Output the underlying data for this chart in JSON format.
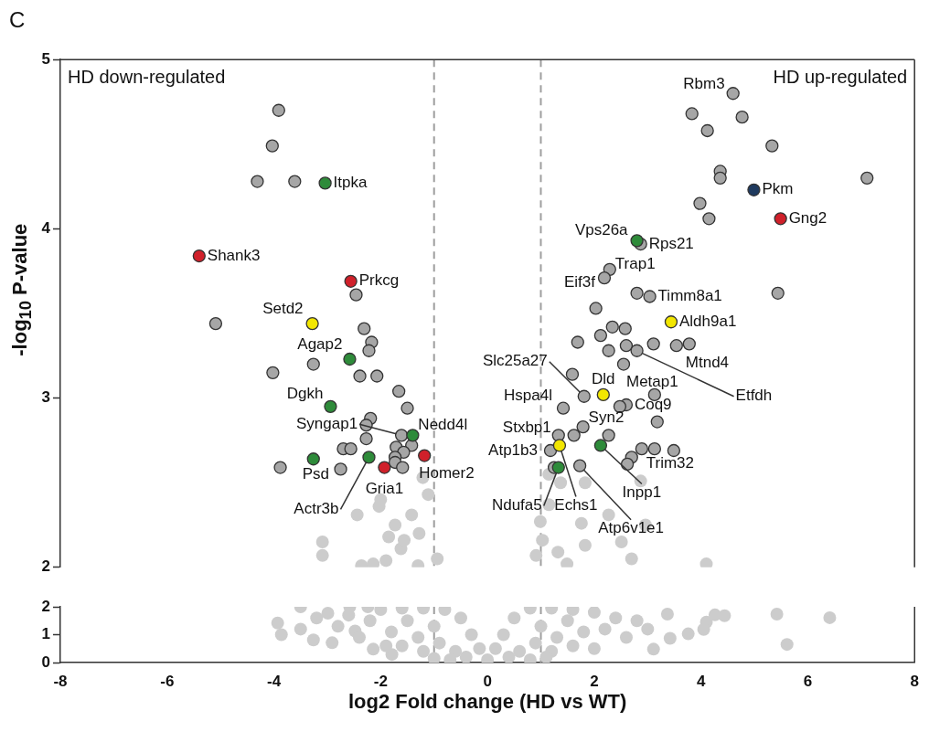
{
  "chart_data": [
    {
      "type": "scatter",
      "title": "C",
      "ylabel": "-log$_{10}$ P-value",
      "xlim": [
        -8,
        8
      ],
      "ylim": [
        2,
        5
      ],
      "yticks": [
        2,
        3,
        4,
        5
      ],
      "tick_labels": "y",
      "grid": false,
      "legend": false,
      "marker": "circle",
      "ref_lines": [
        {
          "axis": "x",
          "value": -1,
          "color": "#9e9e9e",
          "line_style": "dashed"
        },
        {
          "axis": "x",
          "value": 1,
          "color": "#9e9e9e",
          "line_style": "dashed"
        }
      ],
      "annotations": [
        "HD down-regulated",
        "HD up-regulated",
        {
          "text": "Itpka",
          "x": -3.04,
          "y": 4.27
        },
        {
          "text": "Shank3",
          "x": -5.4,
          "y": 3.84
        },
        {
          "text": "Prkcg",
          "x": -2.56,
          "y": 3.69
        },
        {
          "text": "Setd2",
          "x": -3.28,
          "y": 3.44
        },
        {
          "text": "Agap2",
          "x": -2.58,
          "y": 3.23
        },
        {
          "text": "Dgkh",
          "x": -2.94,
          "y": 2.95
        },
        {
          "text": "Syngap1",
          "x": -1.61,
          "y": 2.78
        },
        {
          "text": "Nedd4l",
          "x": -1.4,
          "y": 2.78
        },
        {
          "text": "Psd",
          "x": -3.26,
          "y": 2.64
        },
        {
          "text": "Actr3b",
          "x": -2.22,
          "y": 2.65
        },
        {
          "text": "Gria1",
          "x": -1.93,
          "y": 2.59
        },
        {
          "text": "Homer2",
          "x": -1.18,
          "y": 2.66
        },
        {
          "text": "Rbm3",
          "x": 4.6,
          "y": 4.8
        },
        {
          "text": "Pkm",
          "x": 4.99,
          "y": 4.23
        },
        {
          "text": "Gng2",
          "x": 5.49,
          "y": 4.06
        },
        {
          "text": "Vps26a",
          "x": 2.8,
          "y": 3.93
        },
        {
          "text": "Rps21",
          "x": 2.87,
          "y": 3.91
        },
        {
          "text": "Trap1",
          "x": 2.29,
          "y": 3.76
        },
        {
          "text": "Eif3f",
          "x": 2.19,
          "y": 3.71
        },
        {
          "text": "Timm8a1",
          "x": 3.04,
          "y": 3.6
        },
        {
          "text": "Aldh9a1",
          "x": 3.44,
          "y": 3.45
        },
        {
          "text": "Mtnd4",
          "x": 3.54,
          "y": 3.31
        },
        {
          "text": "Etfdh",
          "x": 2.8,
          "y": 3.28
        },
        {
          "text": "Metap1",
          "x": 2.55,
          "y": 3.2
        },
        {
          "text": "Slc25a27",
          "x": 1.81,
          "y": 3.01
        },
        {
          "text": "Dld",
          "x": 2.17,
          "y": 3.02
        },
        {
          "text": "Hspa4l",
          "x": 1.42,
          "y": 2.94
        },
        {
          "text": "Coq9",
          "x": 2.6,
          "y": 2.96
        },
        {
          "text": "Syn2",
          "x": 1.79,
          "y": 2.83
        },
        {
          "text": "Stxbp1",
          "x": 1.33,
          "y": 2.78
        },
        {
          "text": "Atp1b3",
          "x": 1.18,
          "y": 2.69
        },
        {
          "text": "Ndufa5",
          "x": 1.33,
          "y": 2.59
        },
        {
          "text": "Echs1",
          "x": 1.35,
          "y": 2.72
        },
        {
          "text": "Inpp1",
          "x": 2.12,
          "y": 2.72
        },
        {
          "text": "Atp6v1e1",
          "x": 1.73,
          "y": 2.6
        },
        {
          "text": "Trim32",
          "x": 2.7,
          "y": 2.65
        }
      ],
      "series": [
        {
          "color": "#cccccc",
          "x": [
            -2.44,
            -2.03,
            -2.0,
            -3.09,
            -3.09,
            -2.36,
            -2.14,
            -1.9,
            -1.42,
            -1.73,
            -1.85,
            -1.28,
            -1.62,
            -0.94,
            -1.3,
            -1.11,
            -1.21,
            -1.56,
            1.15,
            1.37,
            1.83,
            2.87,
            1.15,
            0.99,
            1.76,
            2.27,
            2.96,
            1.03,
            0.91,
            1.32,
            1.83,
            2.51,
            2.7,
            4.1,
            1.49
          ],
          "values": [
            2.31,
            2.36,
            2.4,
            2.15,
            2.07,
            2.01,
            2.02,
            2.04,
            2.31,
            2.25,
            2.18,
            2.2,
            2.11,
            2.05,
            2.01,
            2.43,
            2.53,
            2.16,
            2.55,
            2.5,
            2.5,
            2.51,
            2.37,
            2.27,
            2.26,
            2.31,
            2.25,
            2.16,
            2.07,
            2.09,
            2.13,
            2.15,
            2.05,
            2.02,
            2.02
          ]
        },
        {
          "color": "#a6a6a6",
          "x": [
            -3.91,
            -4.03,
            -4.31,
            -3.61,
            -2.46,
            -5.09,
            -2.31,
            -2.17,
            -2.22,
            -3.26,
            -4.02,
            -2.39,
            -2.07,
            -1.66,
            -1.5,
            -2.19,
            -2.27,
            -2.27,
            -1.61,
            -1.42,
            -1.71,
            -1.57,
            -2.7,
            -2.56,
            -3.88,
            -2.75,
            -1.73,
            -1.73,
            -1.59,
            4.6,
            3.83,
            4.77,
            4.12,
            5.33,
            4.36,
            4.36,
            7.11,
            3.98,
            4.15,
            2.87,
            2.29,
            2.19,
            2.8,
            3.04,
            5.44,
            2.03,
            2.34,
            2.58,
            2.12,
            1.69,
            3.11,
            3.54,
            3.78,
            2.6,
            2.8,
            2.27,
            2.55,
            1.59,
            1.81,
            3.13,
            1.42,
            2.6,
            2.48,
            3.18,
            1.79,
            1.62,
            2.27,
            1.33,
            1.18,
            1.25,
            1.73,
            2.89,
            3.13,
            3.49,
            2.7,
            2.62
          ],
          "values": [
            4.7,
            4.49,
            4.28,
            4.28,
            3.61,
            3.44,
            3.41,
            3.33,
            3.28,
            3.2,
            3.15,
            3.13,
            3.13,
            3.04,
            2.94,
            2.88,
            2.84,
            2.76,
            2.78,
            2.72,
            2.71,
            2.68,
            2.7,
            2.7,
            2.59,
            2.58,
            2.65,
            2.62,
            2.59,
            4.8,
            4.68,
            4.66,
            4.58,
            4.49,
            4.34,
            4.3,
            4.3,
            4.15,
            4.06,
            3.91,
            3.76,
            3.71,
            3.62,
            3.6,
            3.62,
            3.53,
            3.42,
            3.41,
            3.37,
            3.33,
            3.32,
            3.31,
            3.32,
            3.31,
            3.28,
            3.28,
            3.2,
            3.14,
            3.01,
            3.02,
            2.94,
            2.96,
            2.95,
            2.86,
            2.83,
            2.78,
            2.78,
            2.78,
            2.69,
            2.59,
            2.6,
            2.7,
            2.7,
            2.69,
            2.65,
            2.61
          ]
        },
        {
          "color": "#2e8b3a",
          "x": [
            -3.04,
            -2.58,
            -2.94,
            -1.4,
            -3.26,
            -2.22,
            2.8,
            2.12,
            1.33
          ],
          "values": [
            4.27,
            3.23,
            2.95,
            2.78,
            2.64,
            2.65,
            3.93,
            2.72,
            2.59
          ]
        },
        {
          "color": "#d0202a",
          "x": [
            -5.4,
            -2.56,
            -1.93,
            -1.18,
            5.49
          ],
          "values": [
            3.84,
            3.69,
            2.59,
            2.66,
            4.06
          ]
        },
        {
          "color": "#f2e600",
          "x": [
            -3.28,
            3.44,
            2.17,
            1.35
          ],
          "values": [
            3.44,
            3.45,
            3.02,
            2.72
          ]
        },
        {
          "color": "#1f3a5f",
          "x": [
            4.99
          ],
          "values": [
            4.23
          ]
        }
      ]
    },
    {
      "type": "scatter",
      "xlabel": "log2 Fold change (HD vs WT)",
      "xlim": [
        -8,
        8
      ],
      "xticks": [
        -8,
        -6,
        -4,
        -2,
        0,
        2,
        4,
        6,
        8
      ],
      "ylim": [
        0,
        2
      ],
      "yticks": [
        0,
        1,
        2
      ],
      "grid": false,
      "legend": false,
      "marker": "circle",
      "ref_lines": [
        {
          "axis": "x",
          "value": -1,
          "color": "#9e9e9e",
          "line_style": "dashed"
        },
        {
          "axis": "x",
          "value": 1,
          "color": "#9e9e9e",
          "line_style": "dashed"
        }
      ],
      "series": [
        {
          "color": "#cccccc",
          "x": [
            -3.93,
            -3.5,
            -3.26,
            -2.91,
            -2.99,
            -2.58,
            -2.24,
            -2.48,
            -2.14,
            -1.79,
            -3.86,
            -2.0,
            -1.6,
            -1.2,
            -0.8,
            -0.5,
            -0.3,
            -0.15,
            0.0,
            -1.5,
            -1.0,
            -2.2,
            -1.8,
            -1.3,
            -0.9,
            -0.6,
            -0.4,
            -1.6,
            -1.2,
            -2.6,
            -2.8,
            -3.2,
            -3.5,
            -2.4,
            -1.9,
            -1.0,
            -0.7,
            0.15,
            0.3,
            0.5,
            0.8,
            1.2,
            1.6,
            2.0,
            2.4,
            2.8,
            3.0,
            1.5,
            1.0,
            1.8,
            1.3,
            0.9,
            0.6,
            0.4,
            1.6,
            1.2,
            2.2,
            2.6,
            2.0,
            0.8,
            1.1,
            3.37,
            4.44,
            5.42,
            6.41,
            5.61,
            4.1,
            4.05,
            3.42,
            3.11,
            3.76,
            4.26
          ],
          "values": [
            1.42,
            2.0,
            0.81,
            0.71,
            1.77,
            2.0,
            2.0,
            1.13,
            0.48,
            0.29,
            1.0,
            1.9,
            1.95,
            1.95,
            1.9,
            1.6,
            1.0,
            0.5,
            0.1,
            1.5,
            1.3,
            1.5,
            1.1,
            0.9,
            0.7,
            0.4,
            0.2,
            0.6,
            0.4,
            1.7,
            1.3,
            1.6,
            1.2,
            0.9,
            0.6,
            0.15,
            0.1,
            0.5,
            1.0,
            1.6,
            1.95,
            1.95,
            1.9,
            1.8,
            1.6,
            1.5,
            1.2,
            1.5,
            1.3,
            1.1,
            0.9,
            0.7,
            0.4,
            0.2,
            0.6,
            0.4,
            1.2,
            0.9,
            0.5,
            0.1,
            0.2,
            1.74,
            1.68,
            1.74,
            1.61,
            0.65,
            1.45,
            1.19,
            0.87,
            0.48,
            1.03,
            1.71
          ]
        }
      ]
    }
  ]
}
